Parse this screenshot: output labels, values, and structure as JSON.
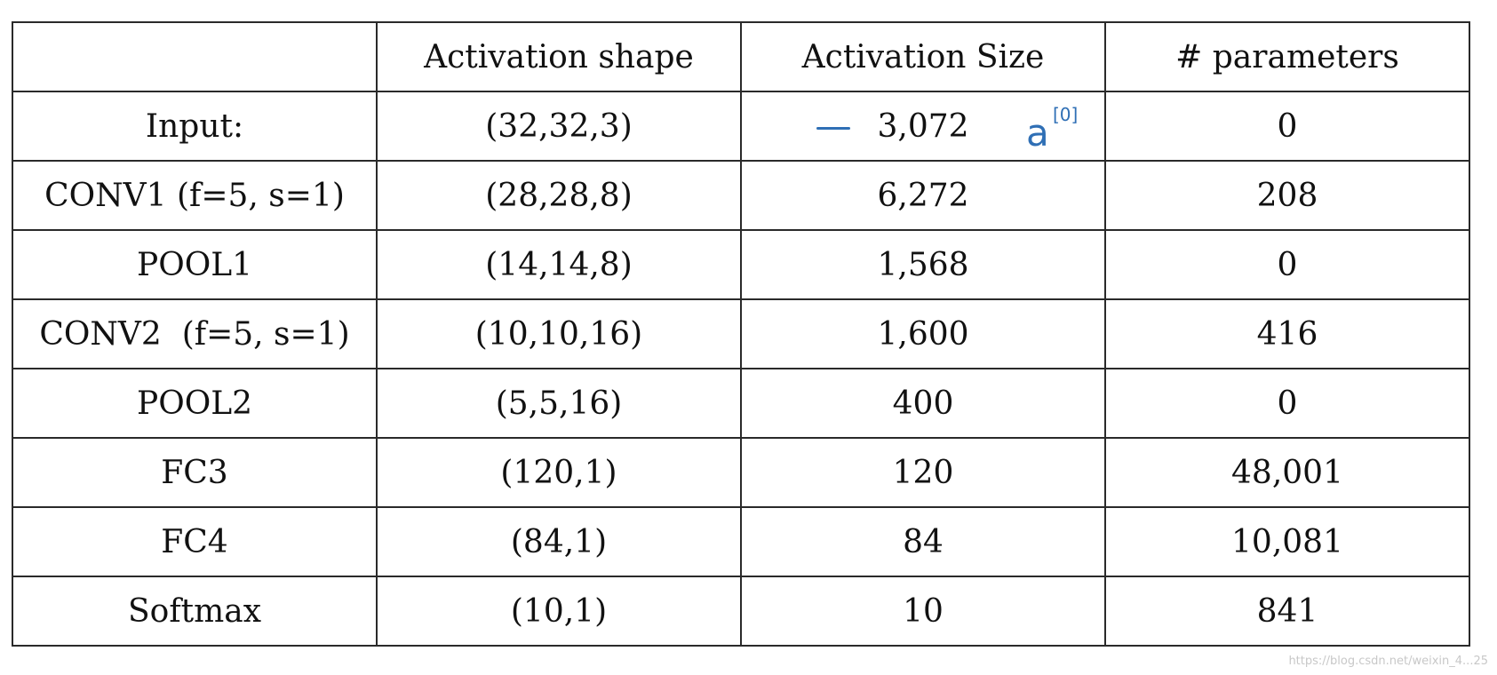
{
  "table": {
    "headers": [
      "",
      "Activation shape",
      "Activation Size",
      "# parameters"
    ],
    "rows": [
      {
        "layer": "Input:",
        "shape": "(32,32,3)",
        "size": "3,072",
        "params": "0"
      },
      {
        "layer": "CONV1 (f=5, s=1)",
        "shape": "(28,28,8)",
        "size": "6,272",
        "params": "208"
      },
      {
        "layer": "POOL1",
        "shape": "(14,14,8)",
        "size": "1,568",
        "params": "0"
      },
      {
        "layer": "CONV2  (f=5, s=1)",
        "shape": "(10,10,16)",
        "size": "1,600",
        "params": "416"
      },
      {
        "layer": "POOL2",
        "shape": "(5,5,16)",
        "size": "400",
        "params": "0"
      },
      {
        "layer": "FC3",
        "shape": "(120,1)",
        "size": "120",
        "params": "48,001"
      },
      {
        "layer": "FC4",
        "shape": "(84,1)",
        "size": "84",
        "params": "10,081"
      },
      {
        "layer": "Softmax",
        "shape": "(10,1)",
        "size": "10",
        "params": "841"
      }
    ]
  },
  "annotation": {
    "symbol": "a",
    "superscript": "[0]",
    "color": "#2f6fb5"
  },
  "watermark": "https://blog.csdn.net/weixin_4...25"
}
